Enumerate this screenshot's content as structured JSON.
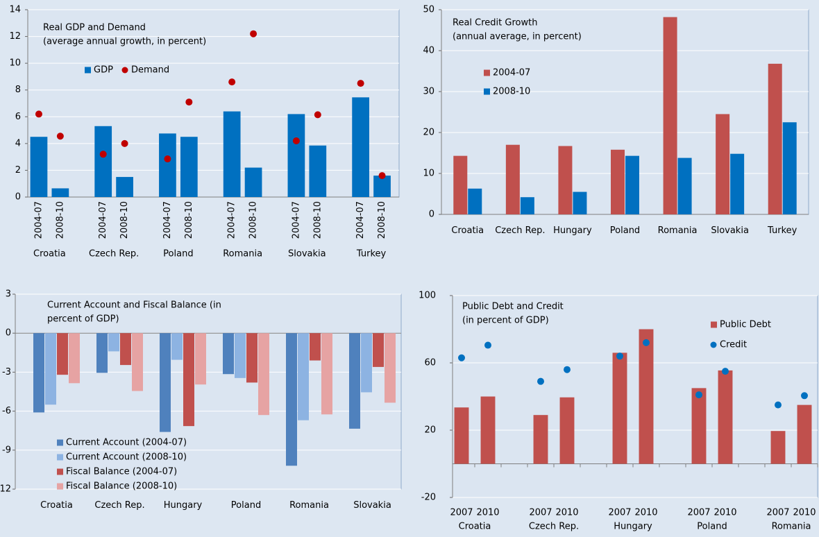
{
  "chart_data": [
    {
      "type": "bar",
      "title": [
        "Real GDP and Demand",
        "(average annual growth, in percent)"
      ],
      "categories": [
        "2004-07",
        "2008-10",
        null,
        "2004-07",
        "2008-10",
        null,
        "2004-07",
        "2008-10",
        null,
        "2004-07",
        "2008-10",
        null,
        "2004-07",
        "2008-10",
        null,
        "2004-07",
        "2008-10"
      ],
      "groups": [
        "Croatia",
        "Czech Rep.",
        "Poland",
        "Romania",
        "Slovakia",
        "Turkey"
      ],
      "series": [
        {
          "name": "GDP",
          "color": "#0070c0",
          "style": "bar",
          "values": [
            4.5,
            0.65,
            null,
            5.3,
            1.5,
            null,
            4.75,
            4.5,
            null,
            6.4,
            2.2,
            null,
            6.2,
            3.85,
            null,
            7.45,
            1.6
          ]
        },
        {
          "name": "Demand",
          "color": "#c00000",
          "style": "dot",
          "values": [
            6.2,
            4.55,
            null,
            3.2,
            4.0,
            null,
            2.85,
            7.1,
            null,
            8.6,
            12.2,
            null,
            4.2,
            6.15,
            null,
            8.5,
            1.6
          ]
        }
      ],
      "ylim": [
        0,
        14
      ],
      "yticks": [
        0,
        2,
        4,
        6,
        8,
        10,
        12,
        14
      ],
      "grid": true
    },
    {
      "type": "bar",
      "title": [
        "Real Credit Growth",
        "(annual average, in percent)"
      ],
      "categories": [
        "Croatia",
        "Czech Rep.",
        "Hungary",
        "Poland",
        "Romania",
        "Slovakia",
        "Turkey"
      ],
      "series": [
        {
          "name": "2004-07",
          "color": "#c0504d",
          "style": "bar",
          "values": [
            14.3,
            17,
            16.7,
            15.8,
            48.2,
            24.5,
            36.8
          ]
        },
        {
          "name": "2008-10",
          "color": "#0070c0",
          "style": "bar",
          "values": [
            6.3,
            4.2,
            5.5,
            14.3,
            13.8,
            14.8,
            22.5
          ]
        }
      ],
      "ylim": [
        0,
        50
      ],
      "yticks": [
        0,
        10,
        20,
        30,
        40,
        50
      ],
      "grid": true
    },
    {
      "type": "bar",
      "title": [
        "Current Account and Fiscal Balance (in",
        "percent of GDP)"
      ],
      "categories": [
        "Croatia",
        "Czech Rep.",
        "Hungary",
        "Poland",
        "Romania",
        "Slovakia"
      ],
      "series": [
        {
          "name": "Current Account (2004-07)",
          "color": "#4f81bd",
          "style": "bar",
          "values": [
            -6.1,
            -3.05,
            -7.6,
            -3.15,
            -10.2,
            -7.35
          ]
        },
        {
          "name": "Current Account (2008-10)",
          "color": "#8db3e2",
          "style": "bar",
          "values": [
            -5.5,
            -1.4,
            -2.05,
            -3.45,
            -6.7,
            -4.55
          ]
        },
        {
          "name": "Fiscal Balance (2004-07)",
          "color": "#c0504d",
          "style": "bar",
          "values": [
            -3.2,
            -2.45,
            -7.15,
            -3.8,
            -2.1,
            -2.6
          ]
        },
        {
          "name": "Fiscal Balance (2008-10)",
          "color": "#e6a3a3",
          "style": "bar",
          "values": [
            -3.85,
            -4.45,
            -3.95,
            -6.3,
            -6.25,
            -5.35
          ]
        }
      ],
      "ylim": [
        -12,
        3
      ],
      "yticks": [
        3,
        0,
        -3,
        -6,
        -9,
        -12
      ],
      "grid": true
    },
    {
      "type": "bar",
      "title": [
        "Public Debt and Credit",
        "(in percent of GDP)"
      ],
      "categories": [
        "2007",
        "2010",
        null,
        "2007",
        "2010",
        null,
        "2007",
        "2010",
        null,
        "2007",
        "2010",
        null,
        "2007",
        "2010"
      ],
      "groups": [
        "Croatia",
        "Czech Rep.",
        "Hungary",
        "Poland",
        "Romania"
      ],
      "series": [
        {
          "name": "Public Debt",
          "color": "#c0504d",
          "style": "bar",
          "values": [
            33.5,
            40,
            null,
            29,
            39.5,
            null,
            66,
            80,
            null,
            45,
            55.5,
            null,
            19.5,
            35
          ]
        },
        {
          "name": "Credit",
          "color": "#0070c0",
          "style": "dot",
          "values": [
            63,
            70.5,
            null,
            49,
            56,
            null,
            64,
            72,
            null,
            41,
            55,
            null,
            35,
            40.5
          ]
        }
      ],
      "ylim": [
        -20,
        100
      ],
      "yticks": [
        -20,
        20,
        60,
        100
      ],
      "grid": true
    }
  ]
}
